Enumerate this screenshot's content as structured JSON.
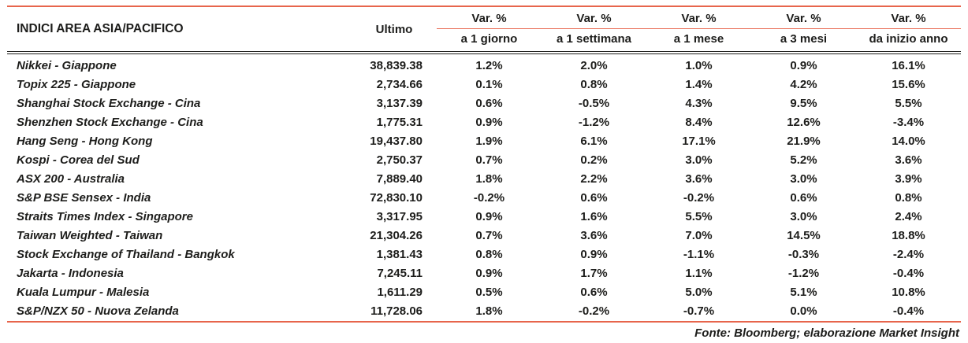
{
  "chart_data": {
    "type": "table",
    "title": "INDICI AREA ASIA/PACIFICO",
    "header": {
      "index_column": "INDICI AREA ASIA/PACIFICO",
      "last_column": "Ultimo",
      "var_label": "Var. %",
      "var_periods": [
        "a 1 giorno",
        "a 1 settimana",
        "a 1 mese",
        "a 3 mesi",
        "da inizio anno"
      ]
    },
    "rows": [
      {
        "index": "Nikkei - Giappone",
        "last": "38,839.38",
        "var": [
          "1.2%",
          "2.0%",
          "1.0%",
          "0.9%",
          "16.1%"
        ]
      },
      {
        "index": "Topix 225 - Giappone",
        "last": "2,734.66",
        "var": [
          "0.1%",
          "0.8%",
          "1.4%",
          "4.2%",
          "15.6%"
        ]
      },
      {
        "index": "Shanghai Stock Exchange - Cina",
        "last": "3,137.39",
        "var": [
          "0.6%",
          "-0.5%",
          "4.3%",
          "9.5%",
          "5.5%"
        ]
      },
      {
        "index": "Shenzhen Stock Exchange - Cina",
        "last": "1,775.31",
        "var": [
          "0.9%",
          "-1.2%",
          "8.4%",
          "12.6%",
          "-3.4%"
        ]
      },
      {
        "index": "Hang Seng - Hong Kong",
        "last": "19,437.80",
        "var": [
          "1.9%",
          "6.1%",
          "17.1%",
          "21.9%",
          "14.0%"
        ]
      },
      {
        "index": "Kospi - Corea del Sud",
        "last": "2,750.37",
        "var": [
          "0.7%",
          "0.2%",
          "3.0%",
          "5.2%",
          "3.6%"
        ]
      },
      {
        "index": "ASX 200 - Australia",
        "last": "7,889.40",
        "var": [
          "1.8%",
          "2.2%",
          "3.6%",
          "3.0%",
          "3.9%"
        ]
      },
      {
        "index": "S&P BSE Sensex - India",
        "last": "72,830.10",
        "var": [
          "-0.2%",
          "0.6%",
          "-0.2%",
          "0.6%",
          "0.8%"
        ]
      },
      {
        "index": "Straits Times Index - Singapore",
        "last": "3,317.95",
        "var": [
          "0.9%",
          "1.6%",
          "5.5%",
          "3.0%",
          "2.4%"
        ]
      },
      {
        "index": "Taiwan Weighted - Taiwan",
        "last": "21,304.26",
        "var": [
          "0.7%",
          "3.6%",
          "7.0%",
          "14.5%",
          "18.8%"
        ]
      },
      {
        "index": "Stock Exchange of Thailand - Bangkok",
        "last": "1,381.43",
        "var": [
          "0.8%",
          "0.9%",
          "-1.1%",
          "-0.3%",
          "-2.4%"
        ]
      },
      {
        "index": "Jakarta - Indonesia",
        "last": "7,245.11",
        "var": [
          "0.9%",
          "1.7%",
          "1.1%",
          "-1.2%",
          "-0.4%"
        ]
      },
      {
        "index": "Kuala Lumpur - Malesia",
        "last": "1,611.29",
        "var": [
          "0.5%",
          "0.6%",
          "5.0%",
          "5.1%",
          "10.8%"
        ]
      },
      {
        "index": "S&P/NZX 50 - Nuova Zelanda",
        "last": "11,728.06",
        "var": [
          "1.8%",
          "-0.2%",
          "-0.7%",
          "0.0%",
          "-0.4%"
        ]
      }
    ],
    "source_note": "Fonte: Bloomberg; elaborazione Market Insight"
  },
  "colors": {
    "accent": "#e7654c",
    "text": "#1d1d1b"
  }
}
